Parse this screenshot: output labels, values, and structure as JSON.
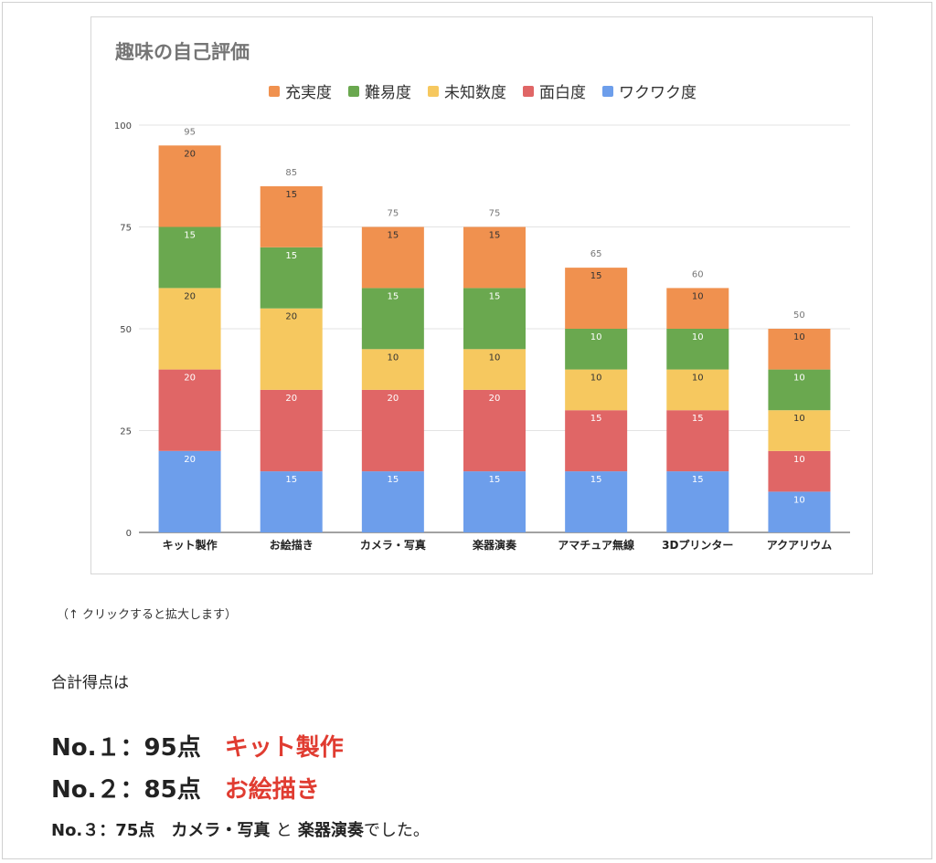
{
  "chart_data": {
    "type": "bar",
    "stacked": true,
    "title": "趣味の自己評価",
    "categories": [
      "キット製作",
      "お絵描き",
      "カメラ・写真",
      "楽器演奏",
      "アマチュア無線",
      "3Dプリンター",
      "アクアリウム"
    ],
    "series": [
      {
        "name": "ワクワク度",
        "color": "#6d9eeb",
        "values": [
          20,
          15,
          15,
          15,
          15,
          15,
          10
        ]
      },
      {
        "name": "面白度",
        "color": "#e06666",
        "values": [
          20,
          20,
          20,
          20,
          15,
          15,
          10
        ]
      },
      {
        "name": "未知数度",
        "color": "#f6c85f",
        "values": [
          20,
          20,
          10,
          10,
          10,
          10,
          10
        ]
      },
      {
        "name": "難易度",
        "color": "#6aa84f",
        "values": [
          15,
          15,
          15,
          15,
          10,
          10,
          10
        ]
      },
      {
        "name": "充実度",
        "color": "#f0914f",
        "values": [
          20,
          15,
          15,
          15,
          15,
          10,
          10
        ]
      }
    ],
    "legend_order": [
      "充実度",
      "難易度",
      "未知数度",
      "面白度",
      "ワクワク度"
    ],
    "totals": [
      95,
      85,
      75,
      75,
      65,
      60,
      50
    ],
    "yticks": [
      0,
      25,
      50,
      75,
      100
    ],
    "ylim": [
      0,
      100
    ],
    "grid": true,
    "legend_position": "top"
  },
  "caption": "（↑ クリックすると拡大します）",
  "intro": "合計得点は",
  "ranks": [
    {
      "no": "No.１",
      "colon": "：",
      "score": "95点",
      "name": "キット製作"
    },
    {
      "no": "No.２",
      "colon": "：",
      "score": "85点",
      "name": "お絵描き"
    },
    {
      "no": "No.３",
      "colon": "：",
      "score": "75点",
      "name1": "カメラ・写真",
      "and": "と",
      "name2": "楽器演奏",
      "tail": "でした。"
    }
  ]
}
